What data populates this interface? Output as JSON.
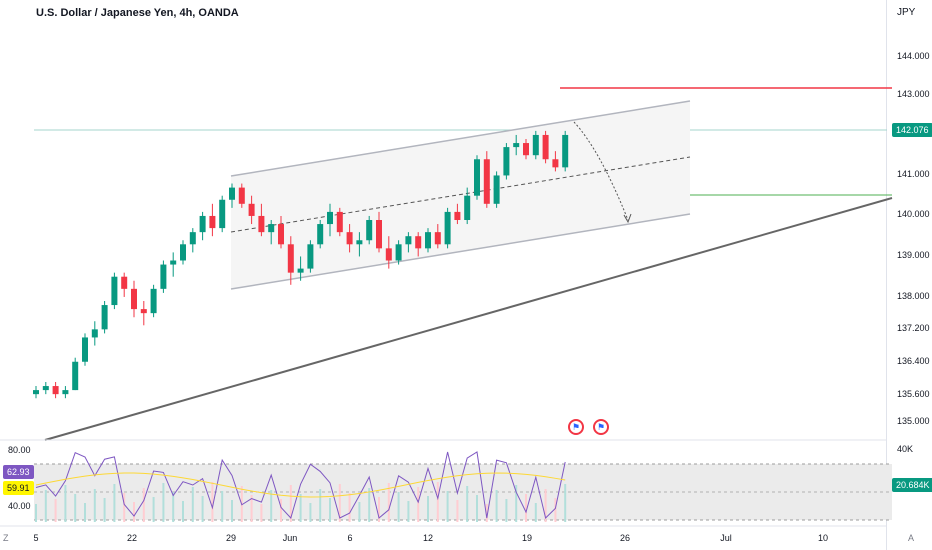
{
  "header": {
    "title": "U.S. Dollar / Japanese Yen, 4h, OANDA",
    "unit": "JPY"
  },
  "price_axis": {
    "ticks": [
      "144.000",
      "143.000",
      "141.000",
      "140.000",
      "139.000",
      "138.000",
      "137.200",
      "136.400",
      "135.600",
      "135.000"
    ],
    "last_price": "142.076"
  },
  "osc_axis": {
    "ticks": [
      "80.00",
      "40.00"
    ],
    "rsi_value": "62.93",
    "ma_value": "59.91",
    "volume_label": "40K",
    "volume_value": "20.684K"
  },
  "time_axis": {
    "ticks": [
      "5",
      "22",
      "29",
      "Jun",
      "6",
      "12",
      "19",
      "26",
      "Jul",
      "10"
    ]
  },
  "corner_labels": {
    "bottom_left": "Z",
    "bottom_right": "A"
  },
  "colors": {
    "up": "#089981",
    "down": "#f23645",
    "channel": "#b2b5be",
    "trend": "#555555",
    "hline_red": "#f23645",
    "hline_green": "#4caf50",
    "rsi": "#7e57c2",
    "rsi_ma": "#fdd835",
    "last_price_line": "#26a69a"
  },
  "events": [
    "us-flag-icon",
    "us-flag-icon"
  ],
  "chart_data": {
    "type": "candlestick",
    "title": "U.S. Dollar / Japanese Yen, 4h, OANDA",
    "ylabel": "JPY",
    "ylim": [
      134.7,
      144.5
    ],
    "x_range": [
      "2023-05-05",
      "2023-07-12"
    ],
    "ohlc_approx": [
      [
        135.7,
        135.9,
        135.6,
        135.8
      ],
      [
        135.8,
        136.0,
        135.7,
        135.9
      ],
      [
        135.9,
        136.0,
        135.6,
        135.7
      ],
      [
        135.7,
        135.9,
        135.6,
        135.8
      ],
      [
        135.8,
        136.6,
        135.8,
        136.5
      ],
      [
        136.5,
        137.2,
        136.4,
        137.1
      ],
      [
        137.1,
        137.5,
        136.9,
        137.3
      ],
      [
        137.3,
        138.0,
        137.2,
        137.9
      ],
      [
        137.9,
        138.7,
        137.8,
        138.6
      ],
      [
        138.6,
        138.7,
        138.1,
        138.3
      ],
      [
        138.3,
        138.5,
        137.6,
        137.8
      ],
      [
        137.8,
        138.0,
        137.4,
        137.7
      ],
      [
        137.7,
        138.4,
        137.6,
        138.3
      ],
      [
        138.3,
        139.0,
        138.2,
        138.9
      ],
      [
        138.9,
        139.2,
        138.6,
        139.0
      ],
      [
        139.0,
        139.5,
        138.9,
        139.4
      ],
      [
        139.4,
        139.8,
        139.2,
        139.7
      ],
      [
        139.7,
        140.2,
        139.5,
        140.1
      ],
      [
        140.1,
        140.4,
        139.6,
        139.8
      ],
      [
        139.8,
        140.6,
        139.7,
        140.5
      ],
      [
        140.5,
        140.9,
        140.3,
        140.8
      ],
      [
        140.8,
        140.9,
        140.3,
        140.4
      ],
      [
        140.4,
        140.6,
        139.9,
        140.1
      ],
      [
        140.1,
        140.4,
        139.6,
        139.7
      ],
      [
        139.7,
        140.0,
        139.4,
        139.9
      ],
      [
        139.9,
        140.1,
        139.3,
        139.4
      ],
      [
        139.4,
        139.6,
        138.4,
        138.7
      ],
      [
        138.7,
        139.1,
        138.5,
        138.8
      ],
      [
        138.8,
        139.5,
        138.7,
        139.4
      ],
      [
        139.4,
        140.0,
        139.3,
        139.9
      ],
      [
        139.9,
        140.4,
        139.6,
        140.2
      ],
      [
        140.2,
        140.3,
        139.6,
        139.7
      ],
      [
        139.7,
        139.9,
        139.2,
        139.4
      ],
      [
        139.4,
        139.7,
        139.1,
        139.5
      ],
      [
        139.5,
        140.1,
        139.4,
        140.0
      ],
      [
        140.0,
        140.2,
        139.2,
        139.3
      ],
      [
        139.3,
        139.6,
        138.8,
        139.0
      ],
      [
        139.0,
        139.5,
        138.9,
        139.4
      ],
      [
        139.4,
        139.7,
        139.2,
        139.6
      ],
      [
        139.6,
        139.7,
        139.1,
        139.3
      ],
      [
        139.3,
        139.8,
        139.2,
        139.7
      ],
      [
        139.7,
        139.9,
        139.3,
        139.4
      ],
      [
        139.4,
        140.3,
        139.3,
        140.2
      ],
      [
        140.2,
        140.4,
        139.9,
        140.0
      ],
      [
        140.0,
        140.8,
        139.9,
        140.6
      ],
      [
        140.6,
        141.6,
        140.5,
        141.5
      ],
      [
        141.5,
        141.7,
        140.3,
        140.4
      ],
      [
        140.4,
        141.2,
        140.3,
        141.1
      ],
      [
        141.1,
        141.9,
        141.0,
        141.8
      ],
      [
        141.8,
        142.1,
        141.6,
        141.9
      ],
      [
        141.9,
        142.0,
        141.5,
        141.6
      ],
      [
        141.6,
        142.2,
        141.5,
        142.1
      ],
      [
        142.1,
        142.2,
        141.4,
        141.5
      ],
      [
        141.5,
        141.7,
        141.2,
        141.3
      ],
      [
        141.3,
        142.2,
        141.2,
        142.1
      ]
    ],
    "annotations": {
      "resistance_red": 143.2,
      "support_green": 140.45,
      "last_price": 142.076
    }
  }
}
